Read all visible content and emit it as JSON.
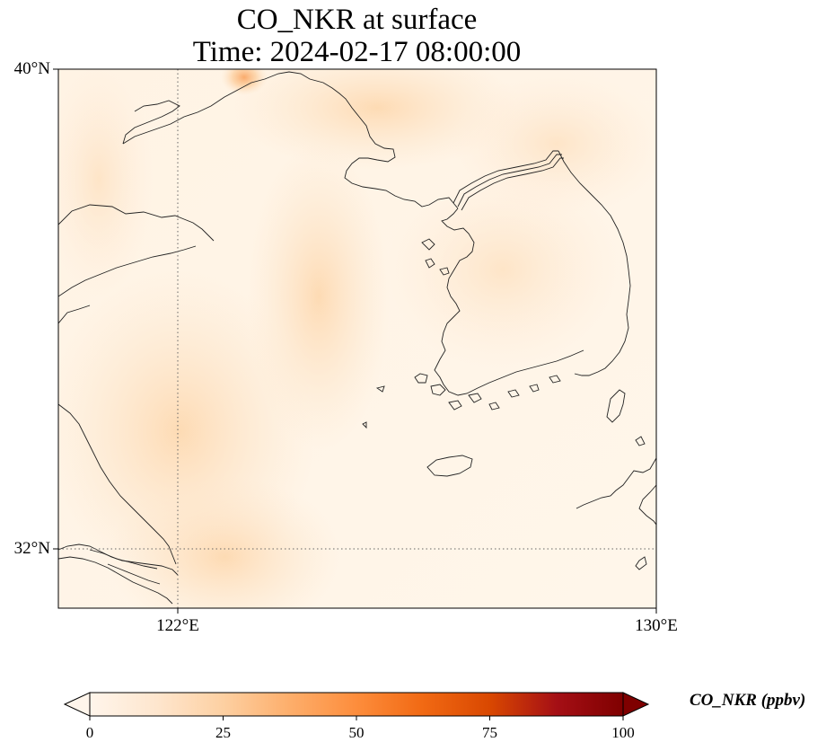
{
  "title_line1": "CO_NKR at surface",
  "title_line2": "Time: 2024-02-17 08:00:00",
  "lat_labels": [
    "40°N",
    "32°N"
  ],
  "lon_labels": [
    "122°E",
    "130°E"
  ],
  "colorbar": {
    "label": "CO_NKR (ppbv)",
    "ticks": [
      "0",
      "25",
      "50",
      "75",
      "100"
    ],
    "min": 0,
    "max": 100,
    "colormap": [
      "#fff5eb",
      "#fee6ce",
      "#fdd0a2",
      "#fdae6b",
      "#fd8d3c",
      "#f16913",
      "#d94801",
      "#a50f15",
      "#67000d"
    ]
  },
  "map": {
    "projection": "PlateCarree",
    "lon_range": [
      120,
      130
    ],
    "lat_range": [
      31,
      40
    ],
    "gridlines": {
      "lon": [
        122
      ],
      "lat": [
        32
      ],
      "style": "dotted"
    },
    "field_range_ppbv": [
      0,
      30
    ],
    "hotspot_ppbv": 30
  }
}
